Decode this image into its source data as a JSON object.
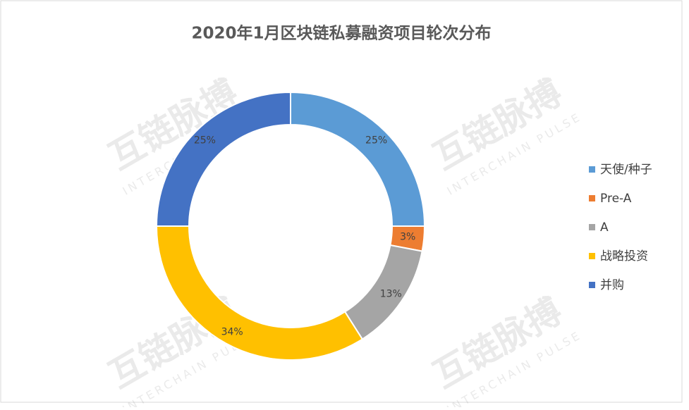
{
  "chart_data": {
    "type": "donut",
    "title": "2020年1月区块链私募融资项目轮次分布",
    "categories": [
      "天使/种子",
      "Pre-A",
      "A",
      "战略投资",
      "并购"
    ],
    "values": [
      25,
      3,
      13,
      34,
      25
    ],
    "value_labels": [
      "25%",
      "3%",
      "13%",
      "34%",
      "25%"
    ],
    "colors": [
      "#5b9bd5",
      "#ed7d31",
      "#a5a5a5",
      "#ffc000",
      "#4472c4"
    ],
    "legend": "right",
    "watermark": {
      "text": "互链脉搏",
      "subtext": "INTERCHAIN PULSE"
    }
  }
}
